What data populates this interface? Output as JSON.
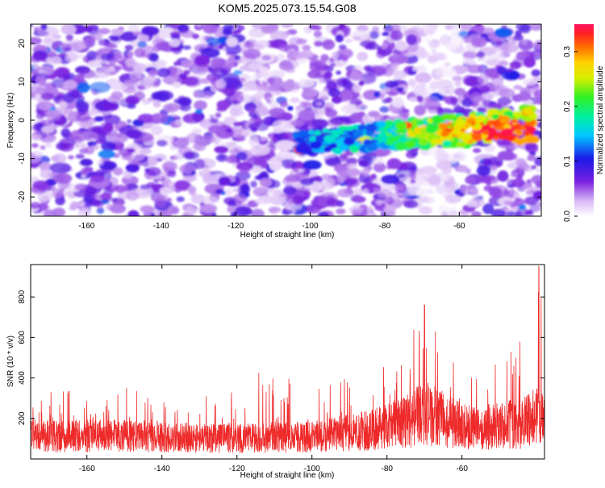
{
  "title": "KOM5.2025.073.15.54.G08",
  "chart_data": [
    {
      "type": "heatmap",
      "xlabel": "Height of straight line (km)",
      "ylabel": "Frequency (Hz)",
      "xlim": [
        -175,
        -38
      ],
      "ylim": [
        -25,
        25
      ],
      "xticks": [
        -160,
        -140,
        -120,
        -100,
        -80,
        -60
      ],
      "yticks": [
        -20,
        -10,
        0,
        10,
        20
      ],
      "colorbar": {
        "label": "Normalized spectral amplitude",
        "range": [
          0.0,
          0.35
        ],
        "ticks": [
          "0.0",
          "0.1",
          "0.2",
          "0.3"
        ],
        "colormap": "rainbow (white-purple-blue-cyan-green-yellow-orange-red)"
      },
      "features": [
        {
          "description": "broadband background noise",
          "x_range": [
            -175,
            -38
          ],
          "y_range": [
            -25,
            25
          ],
          "amplitude": 0.05
        },
        {
          "description": "high-amplitude linear trend",
          "x_start": -104,
          "y_start": -6,
          "x_end": -40,
          "y_end": -1,
          "peak_amplitude": 0.33,
          "peak_x": -52,
          "peak_y": -3
        }
      ]
    },
    {
      "type": "line",
      "xlabel": "Height of straight line (km)",
      "ylabel": "SNR (10 * v/v)",
      "xlim": [
        -175,
        -38
      ],
      "ylim": [
        0,
        960
      ],
      "xticks": [
        -160,
        -140,
        -120,
        -100,
        -80,
        -60
      ],
      "yticks": [
        200,
        400,
        600,
        800
      ],
      "series_color": "#ee2a2a",
      "envelope": [
        {
          "x": -175,
          "typical": 130,
          "peak": 340
        },
        {
          "x": -150,
          "typical": 130,
          "peak": 360
        },
        {
          "x": -125,
          "typical": 115,
          "peak": 310
        },
        {
          "x": -112,
          "typical": 120,
          "peak": 470
        },
        {
          "x": -100,
          "typical": 125,
          "peak": 330
        },
        {
          "x": -85,
          "typical": 160,
          "peak": 460
        },
        {
          "x": -75,
          "typical": 210,
          "peak": 600
        },
        {
          "x": -70,
          "typical": 260,
          "peak": 760
        },
        {
          "x": -66,
          "typical": 230,
          "peak": 640
        },
        {
          "x": -60,
          "typical": 190,
          "peak": 520
        },
        {
          "x": -55,
          "typical": 180,
          "peak": 470
        },
        {
          "x": -50,
          "typical": 185,
          "peak": 540
        },
        {
          "x": -44,
          "typical": 200,
          "peak": 600
        },
        {
          "x": -39.5,
          "typical": 250,
          "peak": 955
        },
        {
          "x": -38,
          "typical": 220,
          "peak": 560
        }
      ]
    }
  ]
}
